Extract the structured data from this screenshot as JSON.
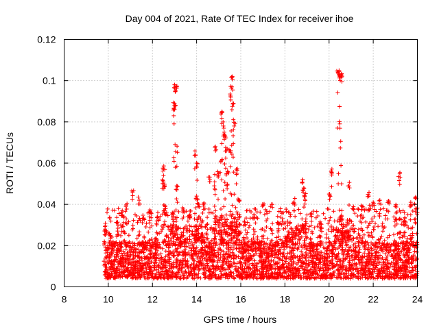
{
  "chart_data": {
    "type": "scatter",
    "title": "Day 004 of 2021, Rate Of TEC Index for receiver ihoe",
    "xlabel": "GPS time / hours",
    "ylabel": "ROTI / TECUs",
    "xlim": [
      8,
      24
    ],
    "ylim": [
      0,
      0.12
    ],
    "xticks": [
      8,
      10,
      12,
      14,
      16,
      18,
      20,
      22,
      24
    ],
    "xtick_labels": [
      "8",
      "10",
      "12",
      "14",
      "16",
      "18",
      "20",
      "22",
      "24"
    ],
    "yticks": [
      0,
      0.02,
      0.04,
      0.06,
      0.08,
      0.1,
      0.12
    ],
    "ytick_labels": [
      "0",
      "0.02",
      "0.04",
      "0.06",
      "0.08",
      "0.1",
      "0.12"
    ],
    "grid": true,
    "marker": "+",
    "color": "#ff0000",
    "series": [
      {
        "name": "ROTI",
        "points": [
          [
            9.85,
            0.028
          ],
          [
            10.1,
            0.025
          ],
          [
            10.4,
            0.031
          ],
          [
            10.6,
            0.036
          ],
          [
            10.8,
            0.039
          ],
          [
            11.1,
            0.046
          ],
          [
            11.4,
            0.042
          ],
          [
            11.6,
            0.033
          ],
          [
            11.9,
            0.036
          ],
          [
            12.2,
            0.032
          ],
          [
            12.45,
            0.052
          ],
          [
            12.5,
            0.057
          ],
          [
            12.55,
            0.049
          ],
          [
            12.6,
            0.038
          ],
          [
            12.9,
            0.036
          ],
          [
            13.0,
            0.098
          ],
          [
            13.05,
            0.095
          ],
          [
            13.0,
            0.089
          ],
          [
            13.1,
            0.097
          ],
          [
            13.0,
            0.086
          ],
          [
            13.1,
            0.049
          ],
          [
            13.4,
            0.037
          ],
          [
            13.7,
            0.035
          ],
          [
            13.95,
            0.064
          ],
          [
            14.0,
            0.06
          ],
          [
            14.0,
            0.044
          ],
          [
            14.1,
            0.04
          ],
          [
            14.3,
            0.04
          ],
          [
            14.6,
            0.052
          ],
          [
            14.8,
            0.049
          ],
          [
            14.85,
            0.068
          ],
          [
            15.0,
            0.055
          ],
          [
            15.1,
            0.061
          ],
          [
            15.15,
            0.085
          ],
          [
            15.2,
            0.08
          ],
          [
            15.25,
            0.075
          ],
          [
            15.3,
            0.073
          ],
          [
            15.35,
            0.066
          ],
          [
            15.4,
            0.056
          ],
          [
            15.5,
            0.066
          ],
          [
            15.55,
            0.092
          ],
          [
            15.6,
            0.097
          ],
          [
            15.62,
            0.102
          ],
          [
            15.65,
            0.089
          ],
          [
            15.7,
            0.078
          ],
          [
            15.8,
            0.057
          ],
          [
            15.9,
            0.042
          ],
          [
            16.2,
            0.03
          ],
          [
            16.6,
            0.035
          ],
          [
            17.0,
            0.04
          ],
          [
            17.4,
            0.04
          ],
          [
            17.7,
            0.031
          ],
          [
            18.2,
            0.036
          ],
          [
            18.4,
            0.041
          ],
          [
            18.8,
            0.052
          ],
          [
            18.85,
            0.048
          ],
          [
            18.9,
            0.044
          ],
          [
            19.2,
            0.034
          ],
          [
            19.6,
            0.029
          ],
          [
            20.0,
            0.045
          ],
          [
            20.1,
            0.056
          ],
          [
            20.4,
            0.104
          ],
          [
            20.45,
            0.103
          ],
          [
            20.5,
            0.102
          ],
          [
            20.55,
            0.103
          ],
          [
            20.6,
            0.033
          ],
          [
            20.9,
            0.049
          ],
          [
            21.1,
            0.038
          ],
          [
            21.5,
            0.039
          ],
          [
            21.8,
            0.044
          ],
          [
            22.0,
            0.041
          ],
          [
            22.3,
            0.042
          ],
          [
            22.7,
            0.041
          ],
          [
            23.0,
            0.039
          ],
          [
            23.2,
            0.055
          ],
          [
            23.4,
            0.032
          ],
          [
            23.7,
            0.041
          ],
          [
            23.9,
            0.043
          ],
          [
            23.95,
            0.038
          ]
        ],
        "dense_band": {
          "x_range": [
            9.8,
            24
          ],
          "baseline_range": [
            0.004,
            0.022
          ],
          "elevated_segments": [
            {
              "x_range": [
                12.8,
                14.3
              ],
              "y_max": 0.03
            },
            {
              "x_range": [
                14.8,
                16.0
              ],
              "y_max": 0.034
            },
            {
              "x_range": [
                18.0,
                19.0
              ],
              "y_max": 0.03
            },
            {
              "x_range": [
                20.2,
                21.2
              ],
              "y_max": 0.028
            }
          ]
        }
      }
    ]
  }
}
